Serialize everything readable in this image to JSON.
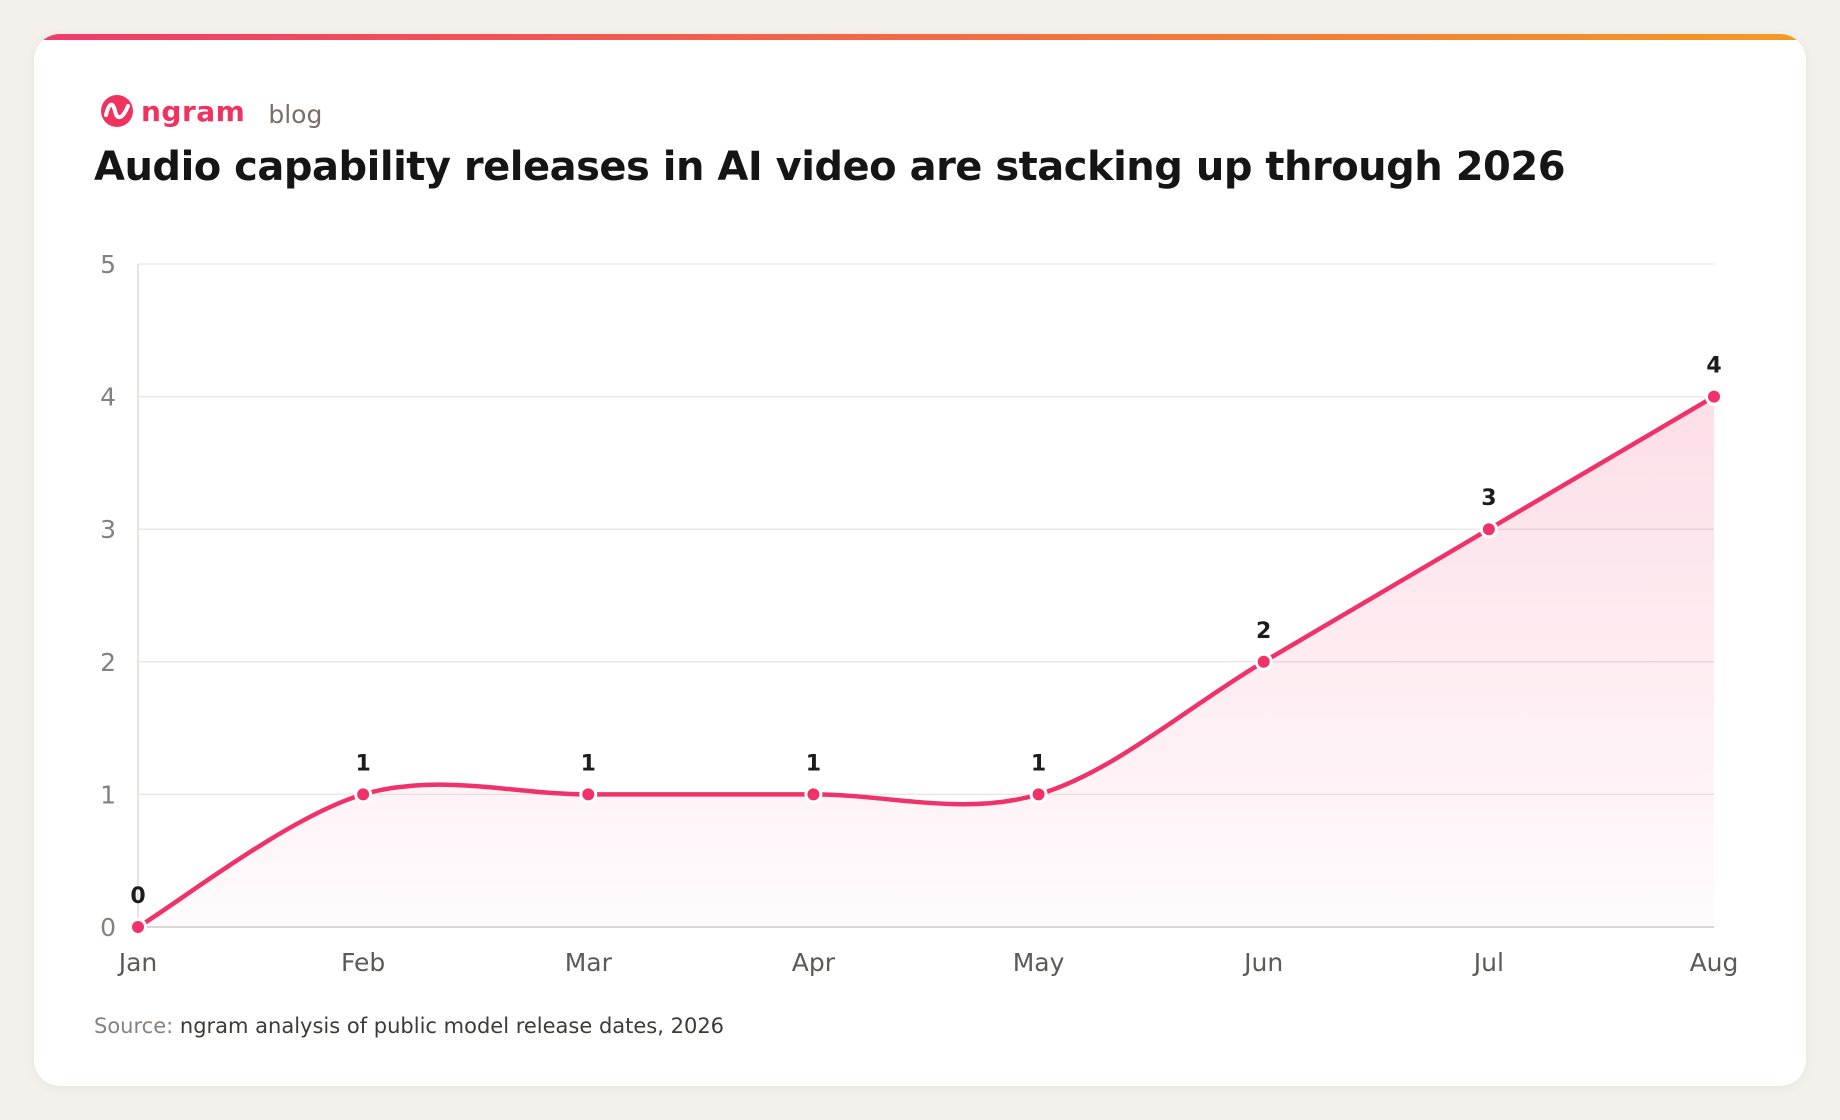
{
  "brand": {
    "name": "ngram",
    "section": "blog",
    "accent_color": "#f0325f",
    "icon": "ngram-wave-logo-icon"
  },
  "chart_data": {
    "type": "area",
    "title": "Audio capability releases in AI video are stacking up through 2026",
    "xlabel": "",
    "ylabel": "",
    "categories": [
      "Jan",
      "Feb",
      "Mar",
      "Apr",
      "May",
      "Jun",
      "Jul",
      "Aug"
    ],
    "series": [
      {
        "values": [
          0,
          1,
          1,
          1,
          1,
          2,
          3,
          4
        ],
        "color": "#f0326b"
      }
    ],
    "y_ticks": [
      "0",
      "1",
      "2",
      "3",
      "4",
      "5"
    ],
    "ylim": [
      0,
      5
    ],
    "grid": true,
    "legend": "none",
    "data_labels": true,
    "smooth": true
  },
  "source": {
    "label": "Source:",
    "text": "ngram analysis of public model release dates, 2026"
  }
}
